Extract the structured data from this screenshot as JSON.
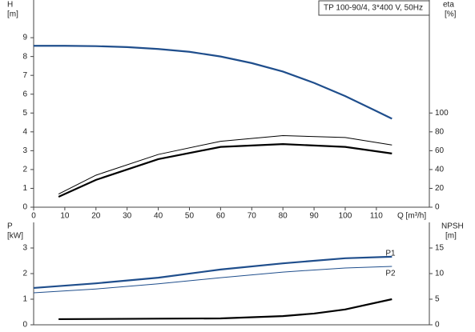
{
  "chart_data": [
    {
      "type": "line",
      "title": "TP 100-90/4, 3*400 V, 50Hz",
      "ylabel": "H",
      "ylabel_unit": "[m]",
      "y2label": "eta",
      "y2label_unit": "[%]",
      "xlabel": "Q [m³/h]",
      "xlim": [
        0,
        127
      ],
      "xticks": [
        0,
        10,
        20,
        30,
        40,
        50,
        60,
        70,
        80,
        90,
        100,
        110
      ],
      "ylim": [
        0,
        11
      ],
      "yticks": [
        0,
        1,
        2,
        3,
        4,
        5,
        6,
        7,
        8,
        9
      ],
      "y2lim": [
        0,
        220
      ],
      "y2ticks": [
        0,
        20,
        40,
        60,
        80,
        100
      ],
      "series": [
        {
          "color": "#1f4e8c",
          "x": [
            0,
            10,
            20,
            30,
            40,
            50,
            60,
            70,
            80,
            90,
            100,
            110,
            115
          ],
          "values": [
            8.57,
            8.57,
            8.55,
            8.5,
            8.4,
            8.25,
            8.0,
            7.65,
            7.2,
            6.6,
            5.9,
            5.1,
            4.7
          ]
        },
        {
          "color": "#000000",
          "axis": "y2",
          "x": [
            8,
            20,
            40,
            60,
            80,
            100,
            115
          ],
          "values": [
            14,
            34,
            56,
            70,
            76,
            74,
            66
          ]
        },
        {
          "color": "#000000",
          "axis": "y2",
          "x": [
            8,
            20,
            40,
            60,
            80,
            100,
            115
          ],
          "values": [
            11,
            29,
            51,
            64,
            67,
            64,
            57
          ]
        }
      ]
    },
    {
      "type": "line",
      "ylabel": "P",
      "ylabel_unit": "[kW]",
      "y2label": "NPSH",
      "y2label_unit": "[m]",
      "xlim": [
        0,
        127
      ],
      "ylim": [
        0,
        4
      ],
      "yticks": [
        0,
        1,
        2,
        3
      ],
      "y2lim": [
        0,
        20
      ],
      "y2ticks": [
        0,
        5,
        10,
        15
      ],
      "series": [
        {
          "name": "P1",
          "color": "#1f4e8c",
          "x": [
            0,
            20,
            40,
            60,
            80,
            100,
            115
          ],
          "values": [
            1.44,
            1.62,
            1.84,
            2.16,
            2.4,
            2.6,
            2.66
          ]
        },
        {
          "name": "P2",
          "color": "#1f4e8c",
          "x": [
            0,
            20,
            40,
            60,
            80,
            100,
            115
          ],
          "values": [
            1.25,
            1.4,
            1.6,
            1.84,
            2.06,
            2.22,
            2.28
          ]
        },
        {
          "color": "#000000",
          "axis": "y2",
          "x": [
            8,
            40,
            60,
            80,
            90,
            100,
            115
          ],
          "values": [
            1.1,
            1.2,
            1.25,
            1.7,
            2.2,
            3,
            5
          ]
        }
      ]
    }
  ]
}
